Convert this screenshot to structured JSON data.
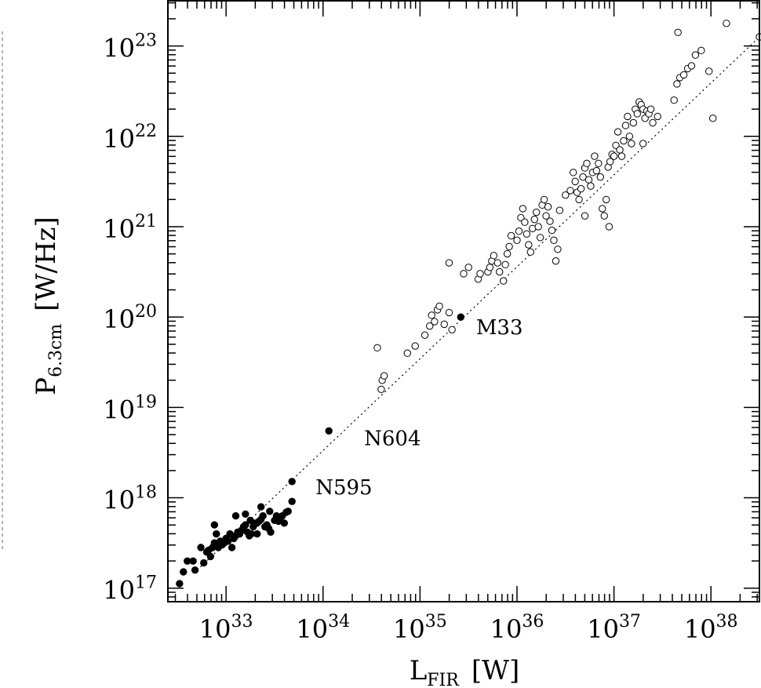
{
  "chart_data": {
    "type": "scatter",
    "title": "",
    "xlabel": {
      "main": "L",
      "sub": "FIR",
      "unit": "[W]"
    },
    "ylabel": {
      "main": "P",
      "sub": "6.3cm",
      "unit": "[W/Hz]"
    },
    "x_scale": "log",
    "y_scale": "log",
    "xlim": [
      32.4,
      38.5
    ],
    "ylim": [
      16.85,
      23.5
    ],
    "x_ticks": [
      {
        "base": "10",
        "exp": "33",
        "value": 33
      },
      {
        "base": "10",
        "exp": "34",
        "value": 34
      },
      {
        "base": "10",
        "exp": "35",
        "value": 35
      },
      {
        "base": "10",
        "exp": "36",
        "value": 36
      },
      {
        "base": "10",
        "exp": "37",
        "value": 37
      },
      {
        "base": "10",
        "exp": "38",
        "value": 38
      }
    ],
    "y_ticks": [
      {
        "base": "10",
        "exp": "17",
        "value": 17
      },
      {
        "base": "10",
        "exp": "18",
        "value": 18
      },
      {
        "base": "10",
        "exp": "19",
        "value": 19
      },
      {
        "base": "10",
        "exp": "20",
        "value": 20
      },
      {
        "base": "10",
        "exp": "21",
        "value": 21
      },
      {
        "base": "10",
        "exp": "22",
        "value": 22
      },
      {
        "base": "10",
        "exp": "23",
        "value": 23
      }
    ],
    "fit_line": {
      "style": "dotted",
      "x": [
        32.7,
        38.55
      ],
      "y": [
        17.2,
        23.15
      ]
    },
    "annotations": [
      {
        "text": "M33",
        "x": 35.4,
        "y": 20.0
      },
      {
        "text": "N604",
        "x": 34.1,
        "y": 18.74
      },
      {
        "text": "N595",
        "x": 33.68,
        "y": 18.18
      }
    ],
    "series": [
      {
        "marker": "filled-circle",
        "points": [
          [
            34.06,
            18.74
          ],
          [
            33.68,
            18.18
          ],
          [
            35.42,
            20.0
          ],
          [
            32.52,
            17.05
          ],
          [
            32.56,
            17.18
          ],
          [
            32.6,
            17.3
          ],
          [
            32.66,
            17.3
          ],
          [
            32.68,
            17.2
          ],
          [
            32.74,
            17.45
          ],
          [
            32.77,
            17.28
          ],
          [
            32.8,
            17.4
          ],
          [
            32.82,
            17.42
          ],
          [
            32.84,
            17.35
          ],
          [
            32.86,
            17.45
          ],
          [
            32.88,
            17.5
          ],
          [
            32.9,
            17.6
          ],
          [
            32.92,
            17.45
          ],
          [
            32.94,
            17.52
          ],
          [
            32.96,
            17.48
          ],
          [
            32.98,
            17.5
          ],
          [
            33.0,
            17.55
          ],
          [
            33.02,
            17.52
          ],
          [
            33.04,
            17.6
          ],
          [
            33.06,
            17.45
          ],
          [
            33.08,
            17.55
          ],
          [
            33.1,
            17.58
          ],
          [
            33.12,
            17.62
          ],
          [
            33.14,
            17.6
          ],
          [
            33.16,
            17.64
          ],
          [
            33.18,
            17.68
          ],
          [
            33.2,
            17.7
          ],
          [
            33.22,
            17.62
          ],
          [
            33.24,
            17.58
          ],
          [
            33.26,
            17.6
          ],
          [
            33.28,
            17.68
          ],
          [
            33.3,
            17.72
          ],
          [
            33.32,
            17.72
          ],
          [
            33.34,
            17.74
          ],
          [
            33.36,
            17.76
          ],
          [
            33.38,
            17.8
          ],
          [
            33.4,
            17.68
          ],
          [
            33.42,
            17.7
          ],
          [
            33.44,
            17.66
          ],
          [
            33.46,
            17.62
          ],
          [
            33.5,
            17.75
          ],
          [
            33.52,
            17.8
          ],
          [
            33.54,
            17.74
          ],
          [
            33.56,
            17.78
          ],
          [
            33.58,
            17.8
          ],
          [
            33.6,
            17.72
          ],
          [
            33.62,
            17.84
          ],
          [
            33.64,
            17.85
          ],
          [
            33.68,
            17.96
          ],
          [
            33.1,
            17.8
          ],
          [
            33.25,
            17.75
          ],
          [
            33.32,
            17.6
          ],
          [
            32.88,
            17.7
          ],
          [
            33.45,
            17.85
          ],
          [
            33.2,
            17.82
          ],
          [
            33.36,
            17.9
          ]
        ]
      },
      {
        "marker": "open-circle",
        "points": [
          [
            34.6,
            19.2
          ],
          [
            34.61,
            19.3
          ],
          [
            34.63,
            19.35
          ],
          [
            34.56,
            19.66
          ],
          [
            34.87,
            19.6
          ],
          [
            34.95,
            19.68
          ],
          [
            35.05,
            19.8
          ],
          [
            35.1,
            19.9
          ],
          [
            35.12,
            20.02
          ],
          [
            35.15,
            19.95
          ],
          [
            35.18,
            20.08
          ],
          [
            35.2,
            20.12
          ],
          [
            35.25,
            19.92
          ],
          [
            35.3,
            20.05
          ],
          [
            35.33,
            19.86
          ],
          [
            35.3,
            20.6
          ],
          [
            35.45,
            20.48
          ],
          [
            35.5,
            20.55
          ],
          [
            35.6,
            20.42
          ],
          [
            35.62,
            20.48
          ],
          [
            35.7,
            20.5
          ],
          [
            35.72,
            20.55
          ],
          [
            35.74,
            20.62
          ],
          [
            35.76,
            20.68
          ],
          [
            35.8,
            20.6
          ],
          [
            35.82,
            20.5
          ],
          [
            35.86,
            20.4
          ],
          [
            35.88,
            20.58
          ],
          [
            35.9,
            20.7
          ],
          [
            35.92,
            20.78
          ],
          [
            35.94,
            20.9
          ],
          [
            36.0,
            20.85
          ],
          [
            36.02,
            20.95
          ],
          [
            36.04,
            21.1
          ],
          [
            36.06,
            21.2
          ],
          [
            36.08,
            21.05
          ],
          [
            36.1,
            20.92
          ],
          [
            36.12,
            20.8
          ],
          [
            36.14,
            20.72
          ],
          [
            36.16,
            20.98
          ],
          [
            36.18,
            21.08
          ],
          [
            36.2,
            21.16
          ],
          [
            36.22,
            21.0
          ],
          [
            36.24,
            20.88
          ],
          [
            36.26,
            21.24
          ],
          [
            36.28,
            21.3
          ],
          [
            36.3,
            21.12
          ],
          [
            36.32,
            21.22
          ],
          [
            36.34,
            21.06
          ],
          [
            36.36,
            20.96
          ],
          [
            36.38,
            20.85
          ],
          [
            36.4,
            20.62
          ],
          [
            36.42,
            20.75
          ],
          [
            36.44,
            21.18
          ],
          [
            36.5,
            21.35
          ],
          [
            36.55,
            21.4
          ],
          [
            36.58,
            21.6
          ],
          [
            36.6,
            21.5
          ],
          [
            36.62,
            21.38
          ],
          [
            36.64,
            21.3
          ],
          [
            36.66,
            21.42
          ],
          [
            36.68,
            21.55
          ],
          [
            36.7,
            21.65
          ],
          [
            36.72,
            21.7
          ],
          [
            36.74,
            21.52
          ],
          [
            36.76,
            21.45
          ],
          [
            36.78,
            21.6
          ],
          [
            36.8,
            21.78
          ],
          [
            36.82,
            21.62
          ],
          [
            36.84,
            21.7
          ],
          [
            36.86,
            21.55
          ],
          [
            36.88,
            21.2
          ],
          [
            36.9,
            21.12
          ],
          [
            36.92,
            21.3
          ],
          [
            36.94,
            21.66
          ],
          [
            36.96,
            21.72
          ],
          [
            36.98,
            21.8
          ],
          [
            37.0,
            21.78
          ],
          [
            37.02,
            21.9
          ],
          [
            37.04,
            22.05
          ],
          [
            37.06,
            21.85
          ],
          [
            37.08,
            21.78
          ],
          [
            37.1,
            21.95
          ],
          [
            37.12,
            22.12
          ],
          [
            37.14,
            22.22
          ],
          [
            37.16,
            22.0
          ],
          [
            37.18,
            21.92
          ],
          [
            37.2,
            22.15
          ],
          [
            37.22,
            22.3
          ],
          [
            37.24,
            22.25
          ],
          [
            37.26,
            22.38
          ],
          [
            37.28,
            22.35
          ],
          [
            37.3,
            22.3
          ],
          [
            37.32,
            22.2
          ],
          [
            37.34,
            22.28
          ],
          [
            37.36,
            22.25
          ],
          [
            37.38,
            22.3
          ],
          [
            37.4,
            22.15
          ],
          [
            37.45,
            22.22
          ],
          [
            37.3,
            21.92
          ],
          [
            37.62,
            22.4
          ],
          [
            37.65,
            22.58
          ],
          [
            37.68,
            22.65
          ],
          [
            37.72,
            22.68
          ],
          [
            37.76,
            22.75
          ],
          [
            37.8,
            22.78
          ],
          [
            37.84,
            22.9
          ],
          [
            37.9,
            22.95
          ],
          [
            37.66,
            23.15
          ],
          [
            37.98,
            22.72
          ],
          [
            38.02,
            22.2
          ],
          [
            38.16,
            23.25
          ],
          [
            38.5,
            23.1
          ],
          [
            36.7,
            21.12
          ],
          [
            36.95,
            21.0
          ]
        ]
      }
    ]
  }
}
